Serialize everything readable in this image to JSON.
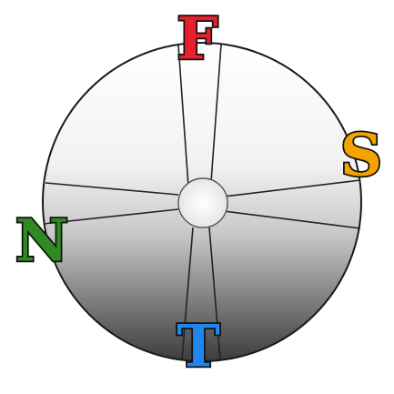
{
  "letters": {
    "top": {
      "text": "F",
      "color": "#e8202e"
    },
    "right": {
      "text": "S",
      "color": "#f5a300"
    },
    "left": {
      "text": "N",
      "color": "#2f8a24"
    },
    "bottom": {
      "text": "T",
      "color": "#1e88f0"
    }
  },
  "wheel": {
    "fill_top": "#ffffff",
    "fill_bottom": "#3c3c3c",
    "outline": "#1a1a1a",
    "spoke_color": "#222222"
  }
}
